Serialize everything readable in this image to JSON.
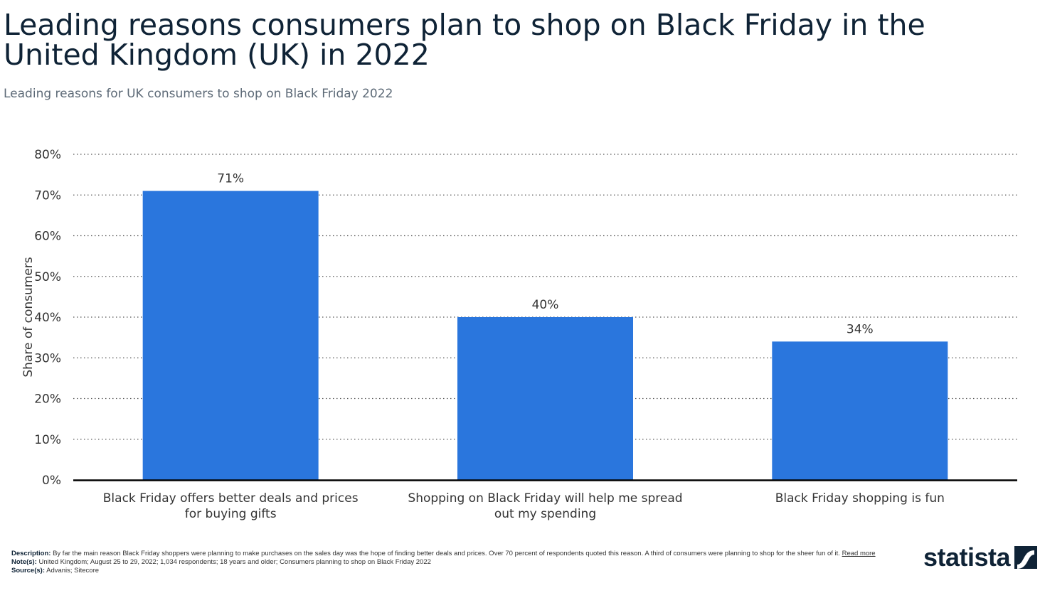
{
  "title": "Leading reasons consumers plan to shop on Black Friday in the United Kingdom (UK) in 2022",
  "subtitle": "Leading reasons for UK consumers to shop on Black Friday 2022",
  "chart_data": {
    "type": "bar",
    "categories": [
      "Black Friday offers better deals and prices for buying gifts",
      "Shopping on Black Friday will help me spread out my spending",
      "Black Friday shopping is fun"
    ],
    "values": [
      71,
      40,
      34
    ],
    "data_labels": [
      "71%",
      "40%",
      "34%"
    ],
    "xlabel": "",
    "ylabel": "Share of consumers",
    "ylim": [
      0,
      80
    ],
    "yticks": [
      "0%",
      "10%",
      "20%",
      "30%",
      "40%",
      "50%",
      "60%",
      "70%",
      "80%"
    ],
    "grid": true,
    "bar_color": "#2a76dd"
  },
  "footer": {
    "description_label": "Description:",
    "description": "By far the main reason Black Friday shoppers were planning to make purchases on the sales day was the hope of finding better deals and prices. Over 70 percent of respondents quoted this reason. A third of consumers were planning to shop for the sheer fun of it.",
    "read_more": "Read more",
    "notes_label": "Note(s):",
    "notes": "United Kingdom; August 25 to 29, 2022; 1,034 respondents; 18 years and older; Consumers planning to shop on Black Friday 2022",
    "sources_label": "Source(s):",
    "sources": "Advanis; Sitecore"
  },
  "logo": {
    "text": "statista"
  }
}
